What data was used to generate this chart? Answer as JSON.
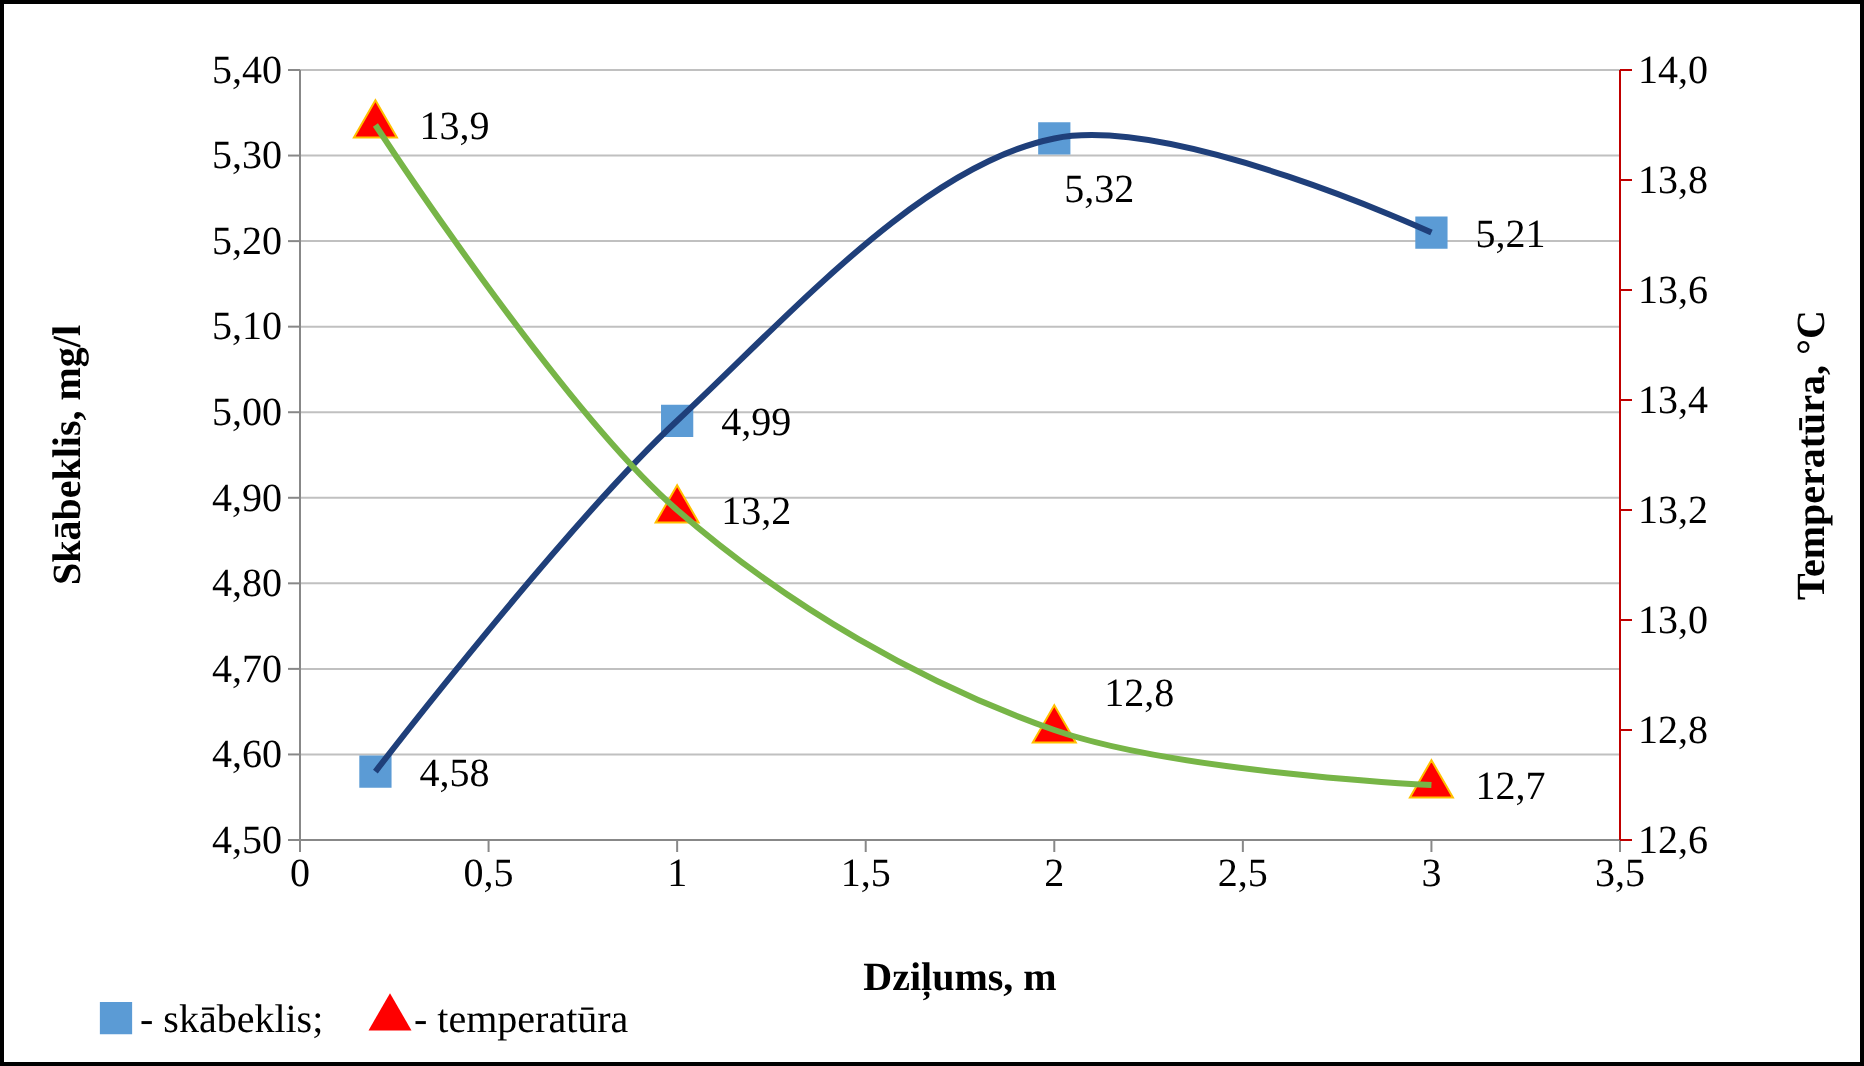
{
  "chart_data": {
    "type": "line",
    "xlabel": "Dziļums, m",
    "ylabel": "Skābeklis, mg/l",
    "y2label": "Temperatūra, °C",
    "x": [
      0.2,
      1,
      2,
      3
    ],
    "series": [
      {
        "name": "- skābeklis;",
        "color": "#1f3f7a",
        "colors": [
          "#5b9bd5",
          "#5b9bd5",
          "#5b9bd5",
          "#5b9bd5"
        ],
        "marker": "square",
        "values": [
          4.58,
          4.99,
          5.32,
          5.21
        ],
        "value_labels": [
          "4,58",
          "4,99",
          "5,32",
          "5,21"
        ]
      },
      {
        "name": "- temperatūra",
        "color": "#77b547",
        "colors": [
          "#ff0000",
          "#ff0000",
          "#ff0000",
          "#ff0000"
        ],
        "marker": "triangle",
        "axis": "y2",
        "values": [
          13.9,
          13.2,
          12.8,
          12.7
        ],
        "value_labels": [
          "13,9",
          "13,2",
          "12,8",
          "12,7"
        ]
      }
    ],
    "xlim": [
      0,
      3.5
    ],
    "xticks": [
      0,
      {
        "value": 0.5,
        "label": "0,5"
      },
      1,
      {
        "value": 1.5,
        "label": "1,5"
      },
      2,
      {
        "value": 2.5,
        "label": "2,5"
      },
      3,
      {
        "value": 3.5,
        "label": "3,5"
      }
    ],
    "ylim": [
      4.5,
      5.4
    ],
    "yticks": [
      {
        "value": 4.5,
        "label": "4,50"
      },
      {
        "value": 4.6,
        "label": "4,60"
      },
      {
        "value": 4.7,
        "label": "4,70"
      },
      {
        "value": 4.8,
        "label": "4,80"
      },
      {
        "value": 4.9,
        "label": "4,90"
      },
      {
        "value": 5.0,
        "label": "5,00"
      },
      {
        "value": 5.1,
        "label": "5,10"
      },
      {
        "value": 5.2,
        "label": "5,20"
      },
      {
        "value": 5.3,
        "label": "5,30"
      },
      {
        "value": 5.4,
        "label": "5,40"
      }
    ],
    "y2lim": [
      12.6,
      14.0
    ],
    "y2ticks": [
      {
        "value": 12.6,
        "label": "12,6"
      },
      {
        "value": 12.8,
        "label": "12,8"
      },
      {
        "value": 13.0,
        "label": "13,0"
      },
      {
        "value": 13.2,
        "label": "13,2"
      },
      {
        "value": 13.4,
        "label": "13,4"
      },
      {
        "value": 13.6,
        "label": "13,6"
      },
      {
        "value": 13.8,
        "label": "13,8"
      },
      {
        "value": 14.0,
        "label": "14,0"
      }
    ],
    "grid": "y",
    "legend": "bottom left"
  }
}
